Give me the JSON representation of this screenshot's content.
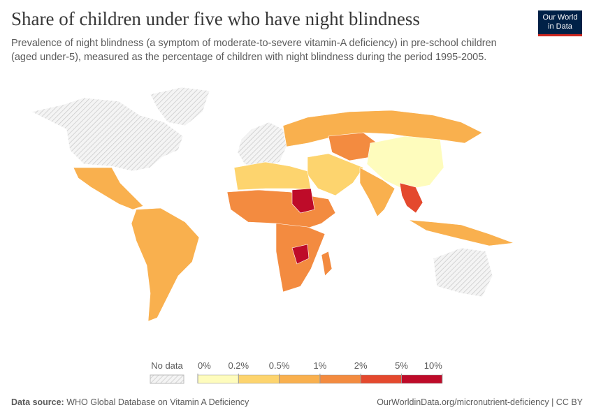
{
  "header": {
    "title": "Share of children under five who have night blindness",
    "subtitle": [
      "Prevalence of night blindness (a symptom of moderate-to-severe vitamin-A deficiency) in pre-school children",
      "(aged under-5), measured as the percentage of children with night blindness during the period 1995-2005."
    ],
    "logo": [
      "Our World",
      "in Data"
    ]
  },
  "legend": {
    "no_data_label": "No data",
    "bins": [
      {
        "value": 0,
        "label": "0%"
      },
      {
        "value": 0.2,
        "label": "0.2%"
      },
      {
        "value": 0.5,
        "label": "0.5%"
      },
      {
        "value": 1,
        "label": "1%"
      },
      {
        "value": 2,
        "label": "2%"
      },
      {
        "value": 5,
        "label": "5%"
      },
      {
        "value": 10,
        "label": "10%"
      }
    ],
    "colors": [
      "#fefcbd",
      "#fdd46e",
      "#f9b04e",
      "#f38b40",
      "#e4492e",
      "#be0b29"
    ]
  },
  "footer": {
    "source_label": "Data source:",
    "source": "WHO Global Database on Vitamin A Deficiency",
    "url": "OurWorldinData.org/micronutrient-deficiency | CC BY"
  }
}
